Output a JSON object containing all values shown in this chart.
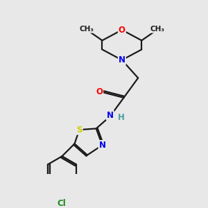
{
  "bg_color": "#e8e8e8",
  "bond_color": "#1a1a1a",
  "bond_width": 1.6,
  "atom_colors": {
    "O": "#ff0000",
    "N": "#0000ee",
    "S": "#cccc00",
    "Cl": "#1a8a1a",
    "C": "#1a1a1a",
    "H": "#4aa0a0"
  },
  "font_size": 8.5
}
